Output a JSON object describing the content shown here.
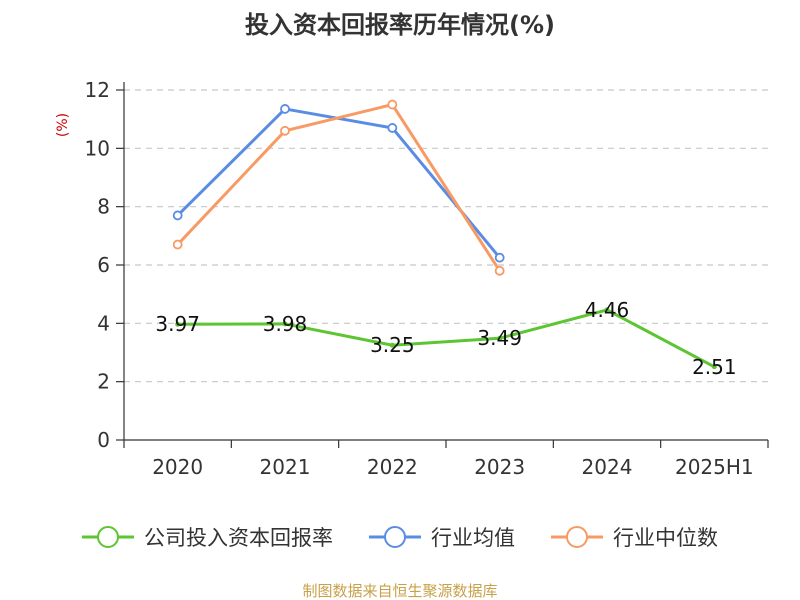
{
  "chart_data": {
    "type": "line",
    "title": "投入资本回报率历年情况(%)",
    "ylabel": "(%)",
    "categories": [
      "2020",
      "2021",
      "2022",
      "2023",
      "2024",
      "2025H1"
    ],
    "ylim": [
      0,
      12
    ],
    "yticks": [
      0,
      2,
      4,
      6,
      8,
      10,
      12
    ],
    "grid": true,
    "legend_position": "bottom",
    "series": [
      {
        "name": "公司投入资本回报率",
        "color": "#5cc531",
        "values": [
          3.97,
          3.98,
          3.25,
          3.49,
          4.46,
          2.51
        ],
        "labels": [
          "3.97",
          "3.98",
          "3.25",
          "3.49",
          "4.46",
          "2.51"
        ]
      },
      {
        "name": "行业均值",
        "color": "#5b8ce3",
        "values": [
          7.7,
          11.35,
          10.7,
          6.25,
          null,
          null
        ]
      },
      {
        "name": "行业中位数",
        "color": "#f79a63",
        "values": [
          6.7,
          10.6,
          11.5,
          5.8,
          null,
          null
        ]
      }
    ]
  },
  "source": "制图数据来自恒生聚源数据库"
}
